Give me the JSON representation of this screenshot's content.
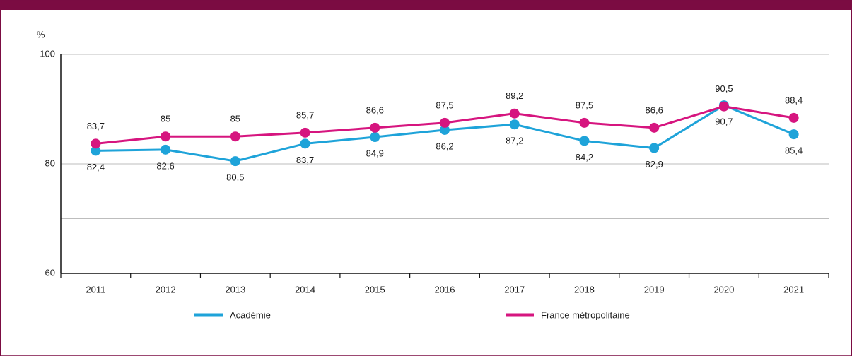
{
  "chart_data": {
    "type": "line",
    "y_unit": "%",
    "categories": [
      "2011",
      "2012",
      "2013",
      "2014",
      "2015",
      "2016",
      "2017",
      "2018",
      "2019",
      "2020",
      "2021"
    ],
    "series": [
      {
        "name": "Académie",
        "color": "#1ea3d9",
        "label_side": "below",
        "values": [
          82.4,
          82.6,
          80.5,
          83.7,
          84.9,
          86.2,
          87.2,
          84.2,
          82.9,
          90.7,
          85.4
        ],
        "value_labels": [
          "82,4",
          "82,6",
          "80,5",
          "83,7",
          "84,9",
          "86,2",
          "87,2",
          "84,2",
          "82,9",
          "90,7",
          "85,4"
        ]
      },
      {
        "name": "France métropolitaine",
        "color": "#d6157f",
        "label_side": "above",
        "values": [
          83.7,
          85,
          85,
          85.7,
          86.6,
          87.5,
          89.2,
          87.5,
          86.6,
          90.5,
          88.4
        ],
        "value_labels": [
          "83,7",
          "85",
          "85",
          "85,7",
          "86,6",
          "87,5",
          "89,2",
          "87,5",
          "86,6",
          "90,5",
          "88,4"
        ]
      }
    ],
    "ylim": [
      60,
      100
    ],
    "yticks": [
      60,
      80,
      100
    ],
    "yminor": [
      70,
      90
    ],
    "grid": true
  }
}
